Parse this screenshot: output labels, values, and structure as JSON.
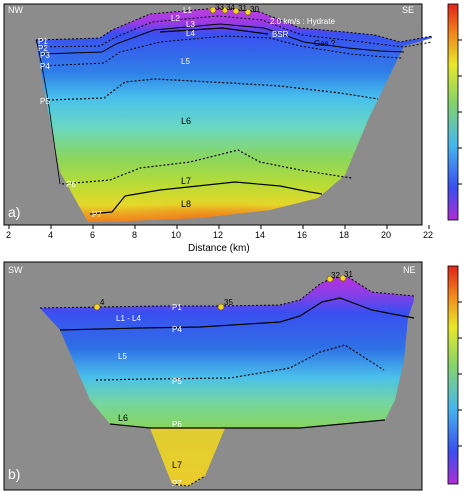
{
  "panel_a": {
    "letter": "a)",
    "left_label": "NW",
    "right_label": "SE",
    "sites": [
      "33",
      "34",
      "31",
      "30"
    ],
    "annotations": {
      "hydrate": "2.0 km/s : Hydrate",
      "bsr": "BSR",
      "gas": "Gas ?"
    },
    "boundaries": [
      "P1",
      "P2",
      "P3",
      "P4",
      "P5",
      "P6",
      "P7"
    ],
    "layers": [
      "L1",
      "L2",
      "L3",
      "L4",
      "L5",
      "L6",
      "L7",
      "L8"
    ],
    "x_axis": {
      "title": "Distance (km)",
      "ticks": [
        "2",
        "4",
        "6",
        "8",
        "10",
        "12",
        "14",
        "16",
        "18",
        "20",
        "22"
      ]
    }
  },
  "panel_b": {
    "letter": "b)",
    "left_label": "SW",
    "right_label": "NE",
    "sites": [
      "4",
      "35",
      "32",
      "31"
    ],
    "boundaries": [
      "P1",
      "P4",
      "P5",
      "P6",
      "P7"
    ],
    "layers": [
      "L1 - L4",
      "L5",
      "L6",
      "L7"
    ]
  },
  "colors": {
    "background": "#8c8c8c",
    "site_marker": "#f5d327",
    "scale": [
      "#b02dd6",
      "#3a4ef0",
      "#46b8ec",
      "#88d468",
      "#e8e82a",
      "#f08a1c",
      "#e2231a"
    ]
  }
}
